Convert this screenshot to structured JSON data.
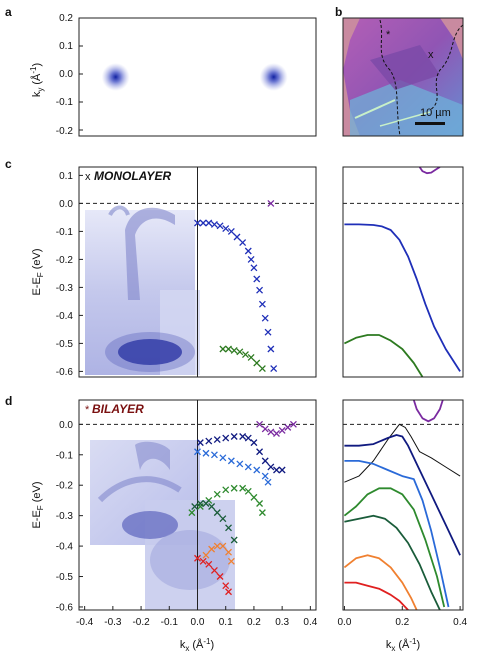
{
  "panels": {
    "a": {
      "label": "a",
      "ylabel": "k",
      "ylabel_sub": "y",
      "ylabel_unit": "(Å",
      "ylabel_sup": "-1",
      "ylabel_end": ")",
      "yticks": [
        "0.2",
        "0.1",
        "0.0",
        "-0.1",
        "-0.2"
      ],
      "yrange": [
        -0.21,
        0.21
      ],
      "xrange": [
        -0.42,
        0.42
      ]
    },
    "b": {
      "label": "b",
      "scalebar": "10 µm",
      "mark_star": "*",
      "mark_x": "x"
    },
    "c": {
      "label": "c",
      "mark": "x",
      "title": "MONOLAYER",
      "title_color": "#111111",
      "ylabel": "E-E",
      "ylabel_sub": "F",
      "ylabel_unit": " (eV)",
      "yticks": [
        "0.1",
        "0.0",
        "-0.1",
        "-0.2",
        "-0.3",
        "-0.4",
        "-0.5",
        "-0.6"
      ],
      "yrange": [
        -0.62,
        0.13
      ]
    },
    "d": {
      "label": "d",
      "mark": "*",
      "title": "BILAYER",
      "title_color": "#7a1010",
      "ylabel": "E-E",
      "ylabel_sub": "F",
      "ylabel_unit": " (eV)",
      "yticks": [
        "0.0",
        "-0.1",
        "-0.2",
        "-0.3",
        "-0.4",
        "-0.5",
        "-0.6"
      ],
      "yrange": [
        -0.61,
        0.08
      ],
      "xlabel": "k",
      "xlabel_sub": "x",
      "xlabel_unit": " (Å",
      "xlabel_sup": "-1",
      "xlabel_end": ")",
      "xticks": [
        "-0.4",
        "-0.3",
        "-0.2",
        "-0.1",
        "0.0",
        "0.1",
        "0.2",
        "0.3",
        "0.4"
      ]
    },
    "right": {
      "xlabel": "k",
      "xlabel_sub": "x",
      "xlabel_unit": " (Å",
      "xlabel_sup": "-1",
      "xlabel_end": ")",
      "xticks": [
        "0.0",
        "0.2",
        "0.4"
      ]
    }
  },
  "chart_data": [
    {
      "panel": "a",
      "type": "heatmap",
      "xlim": [
        -0.42,
        0.42
      ],
      "ylim": [
        -0.21,
        0.21
      ],
      "spots": [
        {
          "x": -0.29,
          "y": 0.0
        },
        {
          "x": 0.27,
          "y": 0.0
        }
      ]
    },
    {
      "panel": "c-left",
      "type": "scatter",
      "xlim": [
        -0.42,
        0.42
      ],
      "ylim": [
        -0.62,
        0.13
      ],
      "fermi_level": 0.0,
      "series": [
        {
          "color": "#1f2fb8",
          "x": [
            0.0,
            0.02,
            0.04,
            0.06,
            0.08,
            0.1,
            0.12,
            0.14,
            0.16,
            0.18,
            0.19,
            0.2,
            0.21,
            0.22,
            0.23,
            0.24,
            0.25,
            0.26,
            0.27
          ],
          "y": [
            -0.07,
            -0.07,
            -0.07,
            -0.075,
            -0.08,
            -0.09,
            -0.1,
            -0.12,
            -0.14,
            -0.17,
            -0.2,
            -0.23,
            -0.27,
            -0.31,
            -0.36,
            -0.41,
            -0.46,
            -0.52,
            -0.59
          ]
        },
        {
          "color": "#2d7a20",
          "x": [
            0.09,
            0.11,
            0.13,
            0.15,
            0.17,
            0.19,
            0.21,
            0.23
          ],
          "y": [
            -0.52,
            -0.52,
            -0.525,
            -0.53,
            -0.54,
            -0.55,
            -0.57,
            -0.59
          ]
        },
        {
          "color": "#7a2aa0",
          "x": [
            0.26
          ],
          "y": [
            0.0
          ]
        }
      ]
    },
    {
      "panel": "c-right",
      "type": "line",
      "xlim": [
        -0.005,
        0.41
      ],
      "ylim": [
        -0.62,
        0.13
      ],
      "fermi_level": 0.0,
      "series": [
        {
          "color": "#1f2fb8",
          "x": [
            0.0,
            0.05,
            0.1,
            0.13,
            0.16,
            0.19,
            0.22,
            0.25,
            0.28,
            0.31,
            0.35,
            0.4
          ],
          "y": [
            -0.075,
            -0.075,
            -0.077,
            -0.082,
            -0.095,
            -0.13,
            -0.19,
            -0.27,
            -0.36,
            -0.44,
            -0.52,
            -0.6
          ]
        },
        {
          "color": "#2d7a20",
          "x": [
            0.0,
            0.04,
            0.08,
            0.12,
            0.16,
            0.2,
            0.24,
            0.27
          ],
          "y": [
            -0.5,
            -0.48,
            -0.47,
            -0.47,
            -0.49,
            -0.52,
            -0.57,
            -0.62
          ]
        },
        {
          "color": "#7a2aa0",
          "x": [
            0.26,
            0.27,
            0.285,
            0.3,
            0.315,
            0.33
          ],
          "y": [
            0.13,
            0.115,
            0.108,
            0.11,
            0.12,
            0.13
          ]
        }
      ]
    },
    {
      "panel": "d-left",
      "type": "scatter",
      "xlim": [
        -0.42,
        0.42
      ],
      "ylim": [
        -0.61,
        0.08
      ],
      "fermi_level": 0.0,
      "series": [
        {
          "color": "#7a2aa0",
          "x": [
            0.22,
            0.24,
            0.26,
            0.28,
            0.3,
            0.32,
            0.34
          ],
          "y": [
            0.0,
            -0.015,
            -0.025,
            -0.03,
            -0.02,
            -0.01,
            0.0
          ]
        },
        {
          "color": "#101a80",
          "x": [
            0.01,
            0.04,
            0.07,
            0.1,
            0.13,
            0.16,
            0.18,
            0.2,
            0.22,
            0.24,
            0.26,
            0.28,
            0.3
          ],
          "y": [
            -0.06,
            -0.055,
            -0.05,
            -0.045,
            -0.04,
            -0.04,
            -0.045,
            -0.06,
            -0.09,
            -0.12,
            -0.14,
            -0.15,
            -0.15
          ]
        },
        {
          "color": "#2a6ad8",
          "x": [
            0.0,
            0.03,
            0.06,
            0.09,
            0.12,
            0.15,
            0.18,
            0.21,
            0.24,
            0.25
          ],
          "y": [
            -0.09,
            -0.095,
            -0.1,
            -0.11,
            -0.12,
            -0.13,
            -0.14,
            -0.15,
            -0.17,
            -0.19
          ]
        },
        {
          "color": "#2e8a2e",
          "x": [
            -0.02,
            0.01,
            0.04,
            0.07,
            0.1,
            0.13,
            0.16,
            0.18,
            0.2,
            0.22,
            0.23
          ],
          "y": [
            -0.29,
            -0.27,
            -0.25,
            -0.23,
            -0.215,
            -0.21,
            -0.21,
            -0.22,
            -0.24,
            -0.26,
            -0.29
          ]
        },
        {
          "color": "#1a5c3a",
          "x": [
            -0.01,
            0.01,
            0.03,
            0.05,
            0.07,
            0.09,
            0.11,
            0.13
          ],
          "y": [
            -0.27,
            -0.26,
            -0.26,
            -0.27,
            -0.29,
            -0.31,
            -0.34,
            -0.38
          ]
        },
        {
          "color": "#f08030",
          "x": [
            0.03,
            0.05,
            0.07,
            0.09,
            0.11,
            0.12
          ],
          "y": [
            -0.43,
            -0.41,
            -0.4,
            -0.4,
            -0.42,
            -0.45
          ]
        },
        {
          "color": "#e02020",
          "x": [
            0.0,
            0.02,
            0.04,
            0.06,
            0.08,
            0.1,
            0.11
          ],
          "y": [
            -0.44,
            -0.45,
            -0.46,
            -0.48,
            -0.5,
            -0.53,
            -0.55
          ]
        }
      ]
    },
    {
      "panel": "d-right",
      "type": "line",
      "xlim": [
        -0.005,
        0.41
      ],
      "ylim": [
        -0.61,
        0.08
      ],
      "fermi_level": 0.0,
      "series": [
        {
          "color": "#7a2aa0",
          "x": [
            0.24,
            0.25,
            0.27,
            0.29,
            0.31,
            0.33,
            0.34
          ],
          "y": [
            0.08,
            0.05,
            0.02,
            0.01,
            0.02,
            0.05,
            0.08
          ]
        },
        {
          "color": "#111111",
          "x": [
            0.0,
            0.05,
            0.1,
            0.15,
            0.19,
            0.21,
            0.23,
            0.26,
            0.3,
            0.35,
            0.4
          ],
          "y": [
            -0.19,
            -0.17,
            -0.12,
            -0.05,
            0.0,
            -0.01,
            -0.04,
            -0.09,
            -0.11,
            -0.14,
            -0.17
          ]
        },
        {
          "color": "#101a80",
          "x": [
            0.0,
            0.05,
            0.1,
            0.15,
            0.18,
            0.2,
            0.22,
            0.25,
            0.3,
            0.35,
            0.4
          ],
          "y": [
            -0.07,
            -0.07,
            -0.065,
            -0.045,
            -0.035,
            -0.04,
            -0.07,
            -0.13,
            -0.23,
            -0.33,
            -0.43
          ]
        },
        {
          "color": "#2a6ad8",
          "x": [
            0.0,
            0.05,
            0.1,
            0.15,
            0.2,
            0.24,
            0.27,
            0.3,
            0.33,
            0.36
          ],
          "y": [
            -0.12,
            -0.12,
            -0.13,
            -0.15,
            -0.17,
            -0.18,
            -0.25,
            -0.35,
            -0.47,
            -0.6
          ]
        },
        {
          "color": "#2e8a2e",
          "x": [
            0.0,
            0.04,
            0.08,
            0.12,
            0.16,
            0.2,
            0.24,
            0.28,
            0.32,
            0.345
          ],
          "y": [
            -0.3,
            -0.27,
            -0.23,
            -0.21,
            -0.21,
            -0.23,
            -0.28,
            -0.38,
            -0.5,
            -0.6
          ]
        },
        {
          "color": "#1a5c3a",
          "x": [
            0.0,
            0.05,
            0.1,
            0.14,
            0.18,
            0.22,
            0.26,
            0.3,
            0.33
          ],
          "y": [
            -0.32,
            -0.31,
            -0.3,
            -0.31,
            -0.34,
            -0.39,
            -0.46,
            -0.55,
            -0.61
          ]
        },
        {
          "color": "#f08030",
          "x": [
            0.0,
            0.04,
            0.08,
            0.12,
            0.16,
            0.2,
            0.23,
            0.25
          ],
          "y": [
            -0.47,
            -0.44,
            -0.43,
            -0.44,
            -0.47,
            -0.52,
            -0.57,
            -0.61
          ]
        },
        {
          "color": "#e02020",
          "x": [
            0.0,
            0.04,
            0.08,
            0.12,
            0.16,
            0.19,
            0.21,
            0.22
          ],
          "y": [
            -0.52,
            -0.52,
            -0.53,
            -0.54,
            -0.56,
            -0.58,
            -0.6,
            -0.61
          ]
        }
      ]
    }
  ]
}
